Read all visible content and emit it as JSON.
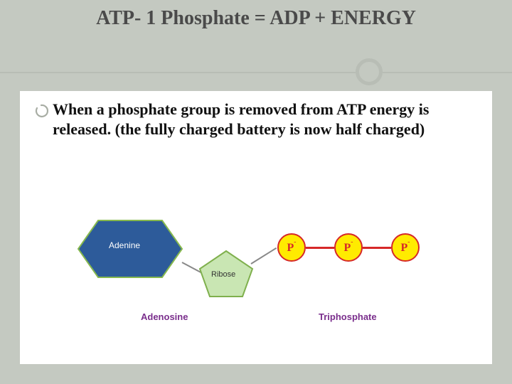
{
  "slide": {
    "background_color": "#c4c9c1",
    "content_bg": "#ffffff",
    "title": "ATP- 1 Phosphate = ADP + ENERGY",
    "title_fontsize": 28,
    "title_color": "#4a4a4a",
    "accent_line_color": "#b8bdb5",
    "circle_stroke": "#b8bdb5",
    "circle_stroke_width": 5
  },
  "bullet": {
    "icon_color": "#a8ada4",
    "text": "When a phosphate group is removed from ATP energy is released. (the fully charged battery is now half charged)",
    "fontsize": 22,
    "font_weight": "bold"
  },
  "diagram": {
    "background": "#ffffff",
    "adenine": {
      "label": "Adenine",
      "fill": "#2d5b9a",
      "stroke": "#86b84e",
      "text_color": "#ffffff",
      "text_fontsize": 12
    },
    "ribose": {
      "label": "Ribose",
      "fill": "#c9e6b3",
      "stroke": "#7fb04d",
      "text_color": "#333333",
      "text_fontsize": 11
    },
    "phosphates": [
      {
        "label": "P",
        "sup": "-",
        "fill": "#ffeb00",
        "stroke": "#d62828",
        "text_color": "#d62828"
      },
      {
        "label": "P",
        "sup": "-",
        "fill": "#ffeb00",
        "stroke": "#d62828",
        "text_color": "#d62828"
      },
      {
        "label": "P",
        "sup": "-",
        "fill": "#ffeb00",
        "stroke": "#d62828",
        "text_color": "#d62828"
      }
    ],
    "bond_color_neutral": "#888888",
    "bond_color_energy": "#d62828",
    "caption_adenosine": {
      "text": "Adenosine",
      "color": "#7a2e8c",
      "fontsize": 13
    },
    "caption_triphosphate": {
      "text": "Triphosphate",
      "color": "#7a2e8c",
      "fontsize": 13
    }
  }
}
